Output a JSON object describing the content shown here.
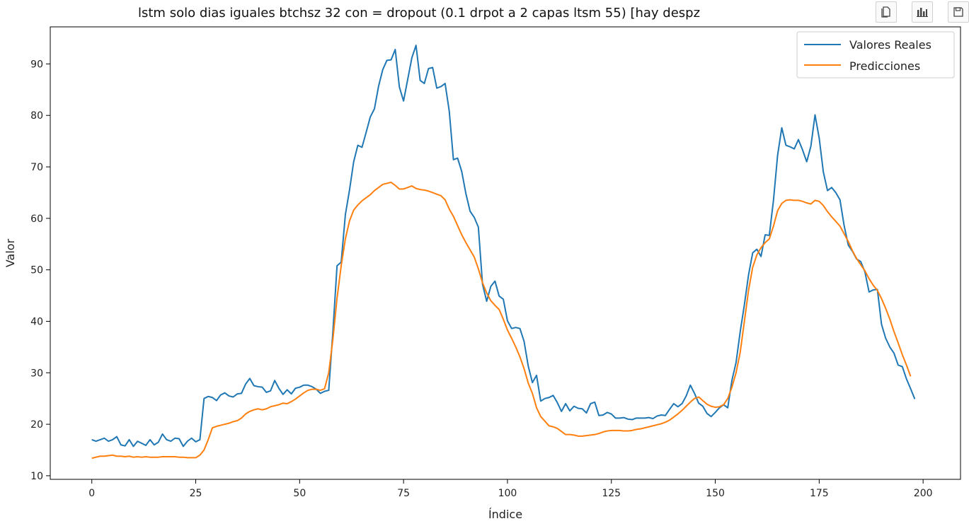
{
  "toolbar": {
    "buttons": [
      {
        "icon": "copy-icon"
      },
      {
        "icon": "bar-chart-icon"
      },
      {
        "icon": "save-icon"
      }
    ]
  },
  "chart_data": {
    "type": "line",
    "title": "lstm solo dias iguales btchsz 32 con = dropout (0.1 drpot a 2 capas ltsm 55) [hay despz",
    "xlabel": "Índice",
    "ylabel": "Valor",
    "xlim": [
      -10,
      209
    ],
    "ylim": [
      9.3,
      97.2
    ],
    "xticks": [
      0,
      25,
      50,
      75,
      100,
      125,
      150,
      175,
      200
    ],
    "yticks": [
      10,
      20,
      30,
      40,
      50,
      60,
      70,
      80,
      90
    ],
    "grid": false,
    "legend": "upper right",
    "series": [
      {
        "name": "Valores Reales",
        "color": "#1f77b4",
        "values": [
          17.0,
          16.7,
          17.0,
          17.3,
          16.7,
          17.0,
          17.6,
          16.0,
          15.8,
          17.0,
          15.7,
          16.7,
          16.3,
          15.9,
          17.0,
          16.0,
          16.5,
          18.1,
          17.0,
          16.7,
          17.3,
          17.2,
          15.7,
          16.7,
          17.3,
          16.6,
          17.0,
          25.0,
          25.4,
          25.2,
          24.6,
          25.7,
          26.1,
          25.5,
          25.3,
          25.9,
          26.0,
          27.8,
          28.9,
          27.5,
          27.3,
          27.2,
          26.2,
          26.5,
          28.5,
          27.0,
          25.8,
          26.7,
          25.9,
          27.0,
          27.2,
          27.6,
          27.6,
          27.3,
          26.8,
          26.0,
          26.4,
          26.6,
          38.0,
          50.8,
          51.5,
          60.7,
          65.5,
          71.0,
          74.2,
          73.8,
          76.7,
          79.7,
          81.3,
          85.7,
          88.9,
          90.7,
          90.8,
          92.8,
          85.5,
          82.8,
          87.0,
          91.2,
          93.6,
          86.8,
          86.2,
          89.1,
          89.3,
          85.3,
          85.6,
          86.2,
          80.8,
          71.4,
          71.7,
          69.1,
          64.8,
          61.4,
          60.2,
          58.3,
          47.2,
          43.9,
          46.8,
          47.8,
          44.9,
          44.3,
          40.1,
          38.6,
          38.8,
          38.6,
          36.1,
          31.3,
          28.1,
          29.5,
          24.5,
          25.0,
          25.2,
          25.6,
          24.2,
          22.5,
          24.0,
          22.6,
          23.5,
          23.1,
          23.0,
          22.2,
          24.0,
          24.3,
          21.7,
          21.8,
          22.3,
          22.0,
          21.2,
          21.2,
          21.3,
          21.0,
          20.9,
          21.2,
          21.2,
          21.2,
          21.3,
          21.1,
          21.6,
          21.8,
          21.7,
          22.9,
          24.0,
          23.4,
          24.0,
          25.5,
          27.6,
          26.0,
          24.1,
          23.5,
          22.1,
          21.5,
          22.3,
          23.2,
          23.8,
          23.2,
          28.5,
          32.0,
          38.0,
          43.2,
          49.0,
          53.3,
          54.0,
          52.6,
          56.8,
          56.7,
          63.5,
          72.3,
          77.6,
          74.2,
          73.9,
          73.5,
          75.3,
          73.3,
          71.0,
          74.0,
          80.1,
          75.6,
          69.0,
          65.4,
          66.0,
          65.0,
          63.6,
          58.6,
          54.8,
          53.6,
          52.1,
          51.6,
          49.6,
          45.7,
          46.1,
          46.2,
          39.4,
          36.7,
          35.0,
          33.8,
          31.5,
          31.2,
          28.8,
          26.9,
          24.9
        ]
      },
      {
        "name": "Predicciones",
        "color": "#ff7f0e",
        "values": [
          13.4,
          13.6,
          13.8,
          13.8,
          13.9,
          14.0,
          13.8,
          13.8,
          13.7,
          13.8,
          13.6,
          13.7,
          13.6,
          13.7,
          13.6,
          13.6,
          13.6,
          13.7,
          13.7,
          13.7,
          13.7,
          13.6,
          13.6,
          13.5,
          13.5,
          13.5,
          14.0,
          15.0,
          17.0,
          19.3,
          19.6,
          19.8,
          20.0,
          20.2,
          20.5,
          20.7,
          21.2,
          22.0,
          22.5,
          22.8,
          23.0,
          22.8,
          23.0,
          23.4,
          23.6,
          23.8,
          24.1,
          24.0,
          24.4,
          24.9,
          25.5,
          26.1,
          26.6,
          26.8,
          26.8,
          26.6,
          26.9,
          30.0,
          36.5,
          44.5,
          50.8,
          56.0,
          59.5,
          61.6,
          62.6,
          63.4,
          64.0,
          64.6,
          65.4,
          66.0,
          66.6,
          66.8,
          67.0,
          66.4,
          65.7,
          65.7,
          66.0,
          66.3,
          65.8,
          65.6,
          65.5,
          65.3,
          65.0,
          64.7,
          64.4,
          63.6,
          61.8,
          60.4,
          58.6,
          56.8,
          55.3,
          53.9,
          52.5,
          50.2,
          47.5,
          45.5,
          44.0,
          43.1,
          42.3,
          40.4,
          38.3,
          36.7,
          35.0,
          33.1,
          30.8,
          28.0,
          26.0,
          23.2,
          21.5,
          20.6,
          19.7,
          19.5,
          19.2,
          18.6,
          18.0,
          18.0,
          17.9,
          17.7,
          17.7,
          17.8,
          17.9,
          18.0,
          18.2,
          18.5,
          18.7,
          18.8,
          18.8,
          18.8,
          18.7,
          18.7,
          18.8,
          19.0,
          19.1,
          19.3,
          19.5,
          19.7,
          19.9,
          20.1,
          20.4,
          20.8,
          21.4,
          22.0,
          22.7,
          23.5,
          24.3,
          25.0,
          25.3,
          24.6,
          23.9,
          23.5,
          23.3,
          23.4,
          23.8,
          25.0,
          27.2,
          30.0,
          34.0,
          40.0,
          46.0,
          50.5,
          52.9,
          54.3,
          55.3,
          56.0,
          58.5,
          61.5,
          62.9,
          63.5,
          63.6,
          63.5,
          63.5,
          63.3,
          63.0,
          62.8,
          63.5,
          63.3,
          62.5,
          61.3,
          60.3,
          59.4,
          58.5,
          57.0,
          55.5,
          53.7,
          52.2,
          51.0,
          49.8,
          48.3,
          47.0,
          46.0,
          44.4,
          42.5,
          40.4,
          38.0,
          35.8,
          33.5,
          31.5,
          29.3
        ]
      }
    ]
  }
}
